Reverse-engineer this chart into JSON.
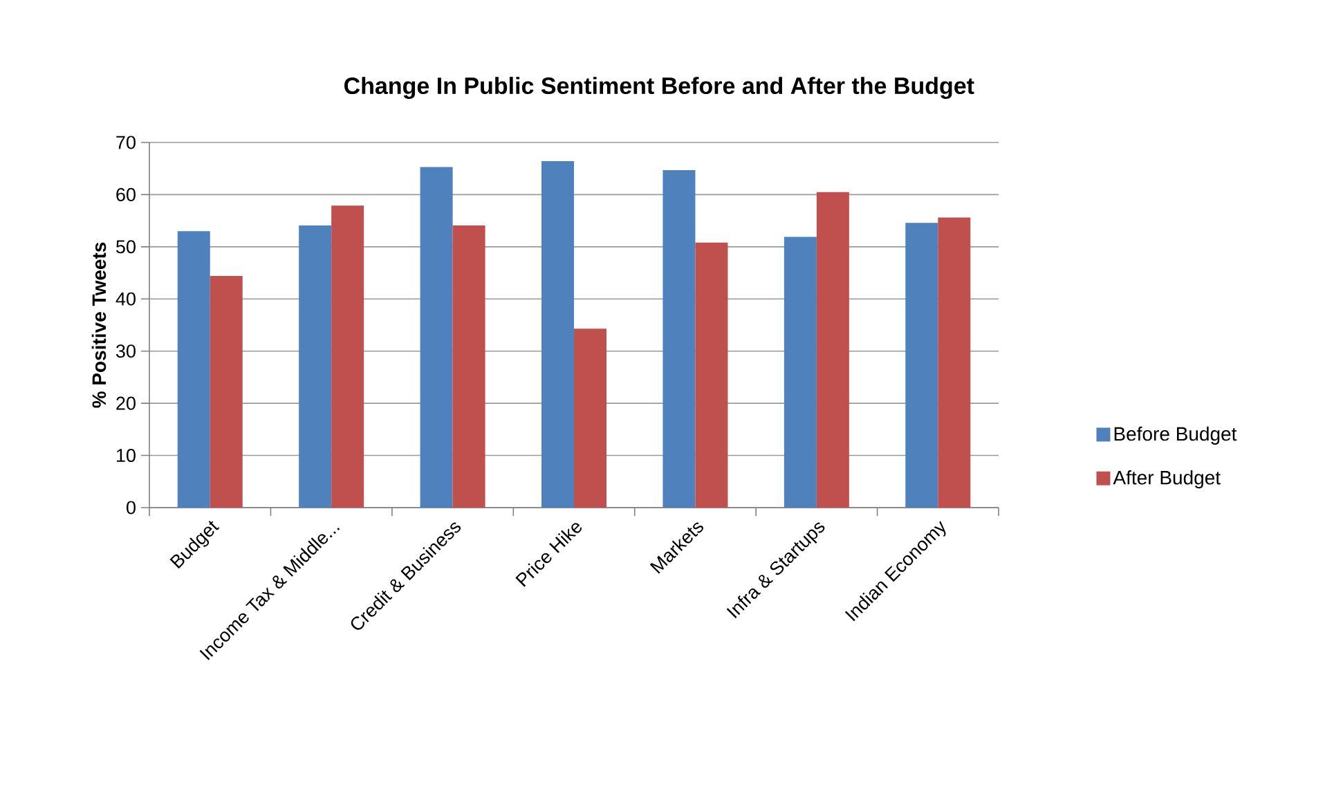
{
  "chart_data": {
    "type": "bar",
    "title": "Change In Public Sentiment Before and After the Budget",
    "ylabel": "% Positive Tweets",
    "categories": [
      "Budget",
      "Income Tax & Middle...",
      "Credit & Business",
      "Price Hike",
      "Markets",
      "Infra & Startups",
      "Indian Economy"
    ],
    "series": [
      {
        "name": "Before Budget",
        "color": "#4f81bd",
        "values": [
          53.0,
          54.1,
          65.3,
          66.4,
          64.7,
          51.9,
          54.6
        ]
      },
      {
        "name": "After Budget",
        "color": "#c0504d",
        "values": [
          44.4,
          57.9,
          54.1,
          34.3,
          50.8,
          60.5,
          55.6
        ]
      }
    ],
    "ylim": [
      0,
      70
    ],
    "yticks": [
      0,
      10,
      20,
      30,
      40,
      50,
      60,
      70
    ],
    "grid": "y",
    "legend": "right"
  }
}
